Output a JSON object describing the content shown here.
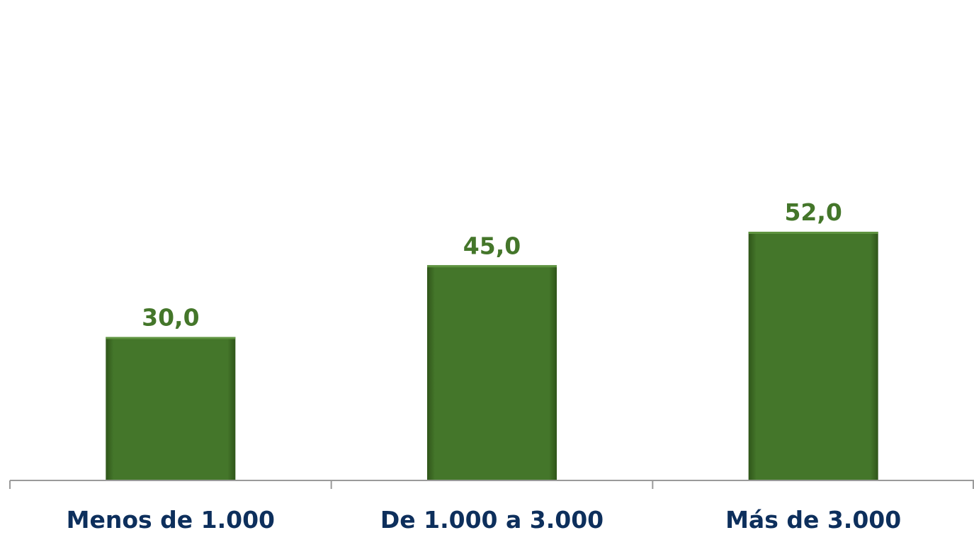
{
  "chart_data": {
    "type": "bar",
    "title": "",
    "xlabel": "",
    "ylabel": "",
    "categories": [
      "Menos de 1.000",
      "De 1.000 a 3.000",
      "Más de 3.000"
    ],
    "values": [
      30.0,
      45.0,
      52.0
    ],
    "value_labels": [
      "30,0",
      "45,0",
      "52,0"
    ],
    "ylim": [
      0,
      60
    ],
    "grid": false,
    "legend": "none",
    "colors": {
      "bar": "#44762a",
      "bar_highlight": "#5f9440",
      "bar_shadow": "#2f5519",
      "value_label": "#44762a",
      "category_label": "#0d2f5c",
      "axis": "#9a9a9a"
    }
  }
}
